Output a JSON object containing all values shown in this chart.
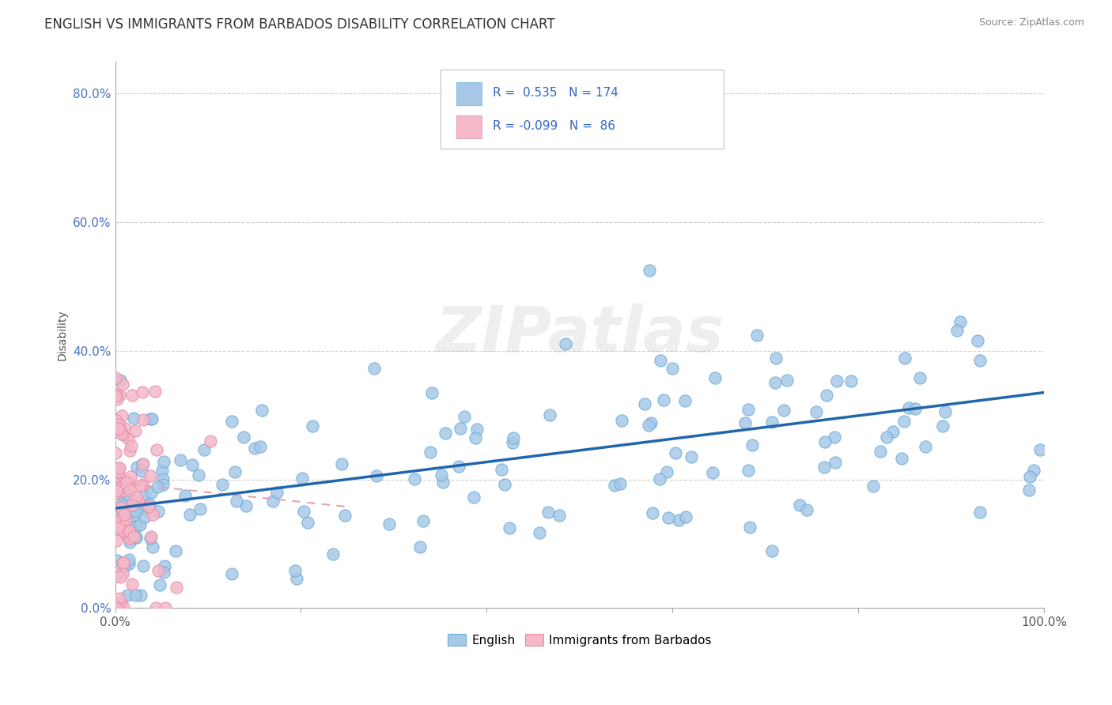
{
  "title": "ENGLISH VS IMMIGRANTS FROM BARBADOS DISABILITY CORRELATION CHART",
  "source": "Source: ZipAtlas.com",
  "ylabel": "Disability",
  "watermark": "ZIPatlas",
  "english_R": 0.535,
  "english_N": 174,
  "barbados_R": -0.099,
  "barbados_N": 86,
  "english_color": "#a8c8e8",
  "english_edge_color": "#6baed6",
  "barbados_color": "#f4b8c8",
  "barbados_edge_color": "#e88ca8",
  "english_line_color": "#2166ac",
  "barbados_line_color": "#e8a0b0",
  "background_color": "#ffffff",
  "grid_color": "#bbbbbb",
  "xlim": [
    0.0,
    1.0
  ],
  "ylim": [
    0.0,
    0.85
  ],
  "legend_R1": "R =  0.535",
  "legend_N1": "N = 174",
  "legend_R2": "R = -0.099",
  "legend_N2": "N =  86",
  "ytick_color": "#4472c4",
  "xtick_color": "#555555"
}
